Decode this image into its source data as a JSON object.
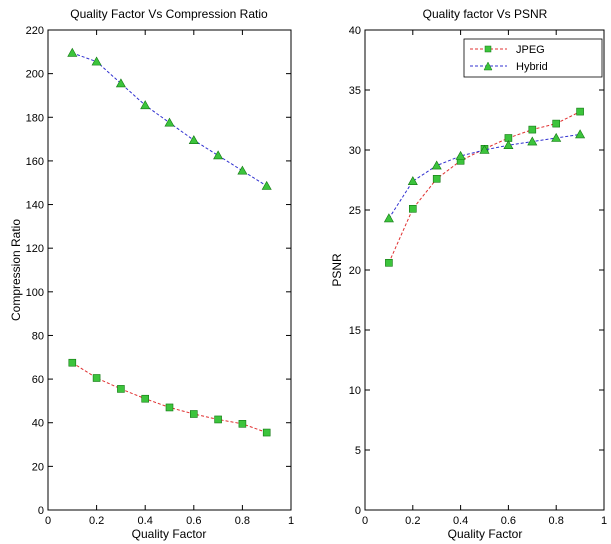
{
  "chart_data": [
    {
      "type": "line",
      "title": "Quality Factor Vs Compression Ratio",
      "xlabel": "Quality Factor",
      "ylabel": "Compression Ratio",
      "xlim": [
        0,
        1
      ],
      "ylim": [
        0,
        220
      ],
      "xticks": [
        "0",
        "0.2",
        "0.4",
        "0.6",
        "0.8",
        "1"
      ],
      "yticks": [
        "0",
        "20",
        "40",
        "60",
        "80",
        "100",
        "120",
        "140",
        "160",
        "180",
        "200",
        "220"
      ],
      "grid": false,
      "x": [
        0.1,
        0.2,
        0.3,
        0.4,
        0.5,
        0.6,
        0.7,
        0.8,
        0.9
      ],
      "series": [
        {
          "key": "jpeg",
          "color": "#e03030",
          "marker": "square",
          "marker_fill": "#3cc43c",
          "values": [
            67.5,
            60.5,
            55.5,
            51,
            47,
            44,
            41.5,
            39.5,
            35.5
          ]
        },
        {
          "key": "hybrid",
          "color": "#3030d0",
          "marker": "triangle",
          "marker_fill": "#3cc43c",
          "values": [
            209.5,
            205.5,
            195.5,
            185.5,
            177.5,
            169.5,
            162.5,
            155.5,
            148.5
          ]
        }
      ]
    },
    {
      "type": "line",
      "title": "Quality factor Vs PSNR",
      "xlabel": "Quality Factor",
      "ylabel": "PSNR",
      "xlim": [
        0,
        1
      ],
      "ylim": [
        0,
        40
      ],
      "xticks": [
        "0",
        "0.2",
        "0.4",
        "0.6",
        "0.8",
        "1"
      ],
      "yticks": [
        "0",
        "5",
        "10",
        "15",
        "20",
        "25",
        "30",
        "35",
        "40"
      ],
      "grid": false,
      "legend_position": "top-right",
      "x": [
        0.1,
        0.2,
        0.3,
        0.4,
        0.5,
        0.6,
        0.7,
        0.8,
        0.9
      ],
      "series": [
        {
          "key": "jpeg",
          "name": "JPEG",
          "color": "#e03030",
          "marker": "square",
          "marker_fill": "#3cc43c",
          "values": [
            20.6,
            25.1,
            27.6,
            29.1,
            30.1,
            31.0,
            31.7,
            32.2,
            33.2
          ]
        },
        {
          "key": "hybrid",
          "name": "Hybrid",
          "color": "#3030d0",
          "marker": "triangle",
          "marker_fill": "#3cc43c",
          "values": [
            24.3,
            27.4,
            28.7,
            29.5,
            30.0,
            30.4,
            30.7,
            31.0,
            31.3
          ]
        }
      ]
    }
  ]
}
